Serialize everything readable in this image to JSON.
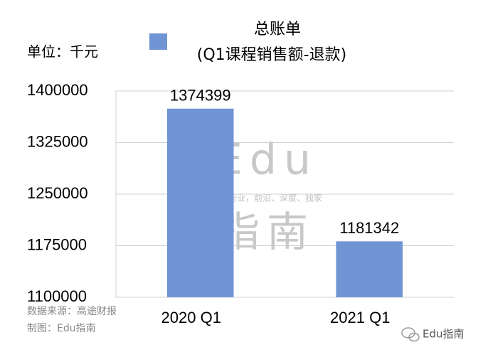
{
  "chart_data": {
    "type": "bar",
    "title": "总账单",
    "subtitle": "(Q1课程销售额-退款)",
    "unit_label": "单位：千元",
    "categories": [
      "2020 Q1",
      "2021 Q1"
    ],
    "values": [
      1374399,
      1181342
    ],
    "color": "#7094d4",
    "ylim": [
      1100000,
      1400000
    ],
    "yticks": [
      1100000,
      1175000,
      1250000,
      1325000,
      1400000
    ],
    "grid": true,
    "source": "数据来源：高途财报",
    "credit": "制图：Edu指南"
  },
  "watermark": {
    "brand": "Edu",
    "tagline": "教育行业，前沿、深度、独家",
    "brand_cn": "指南"
  },
  "footer": {
    "account": "Edu指南"
  }
}
